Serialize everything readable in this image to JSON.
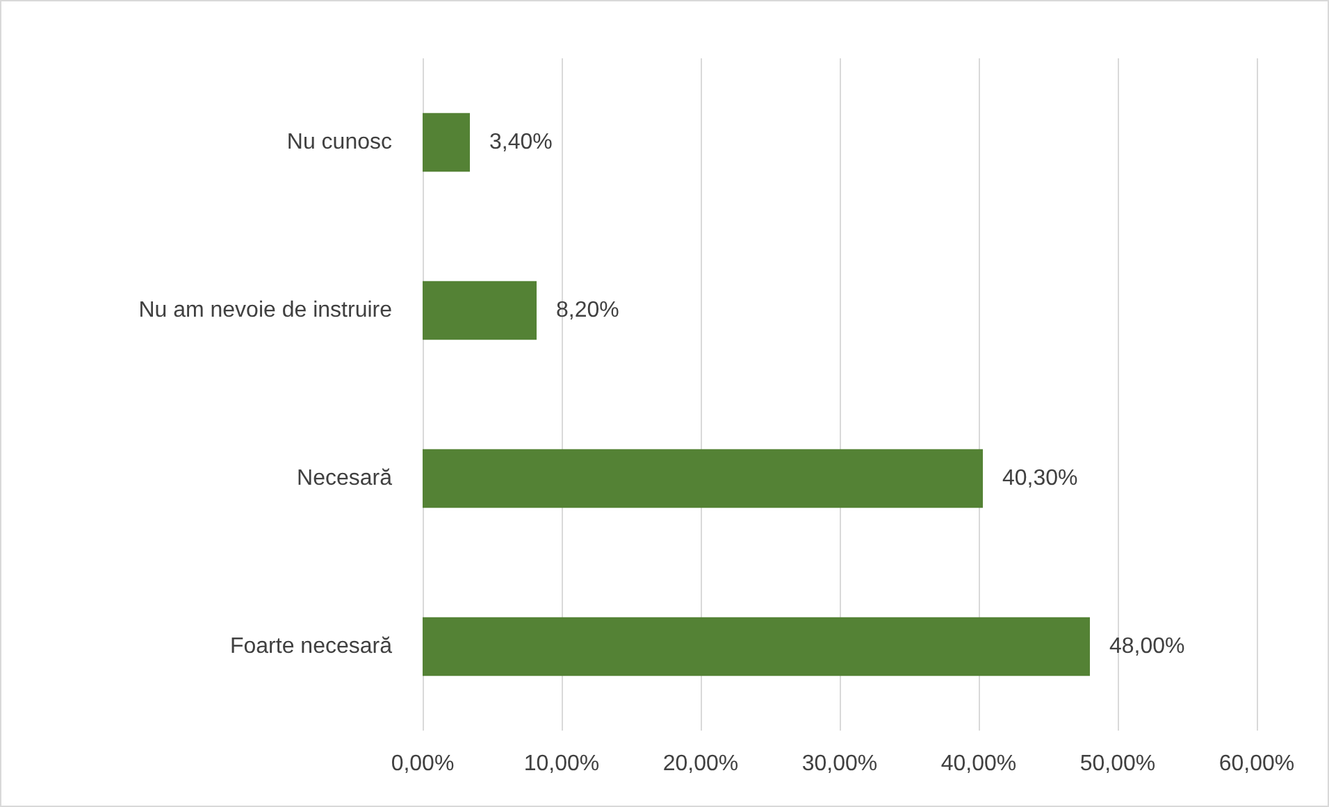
{
  "chart_data": {
    "type": "bar",
    "orientation": "horizontal",
    "categories": [
      "Nu cunosc",
      "Nu am nevoie de instruire",
      "Necesară",
      "Foarte necesară"
    ],
    "series": [
      {
        "color": "#548235",
        "values": [
          3.4,
          8.2,
          40.3,
          48.0
        ],
        "value_labels": [
          "3,40%",
          "8,20%",
          "40,30%",
          "48,00%"
        ]
      }
    ],
    "xlim": [
      0,
      60
    ],
    "xticks": [
      {
        "value": 0,
        "label": "0,00%"
      },
      {
        "value": 10,
        "label": "10,00%"
      },
      {
        "value": 20,
        "label": "20,00%"
      },
      {
        "value": 30,
        "label": "30,00%"
      },
      {
        "value": 40,
        "label": "40,00%"
      },
      {
        "value": 50,
        "label": "50,00%"
      },
      {
        "value": 60,
        "label": "60,00%"
      }
    ],
    "grid": "x"
  }
}
